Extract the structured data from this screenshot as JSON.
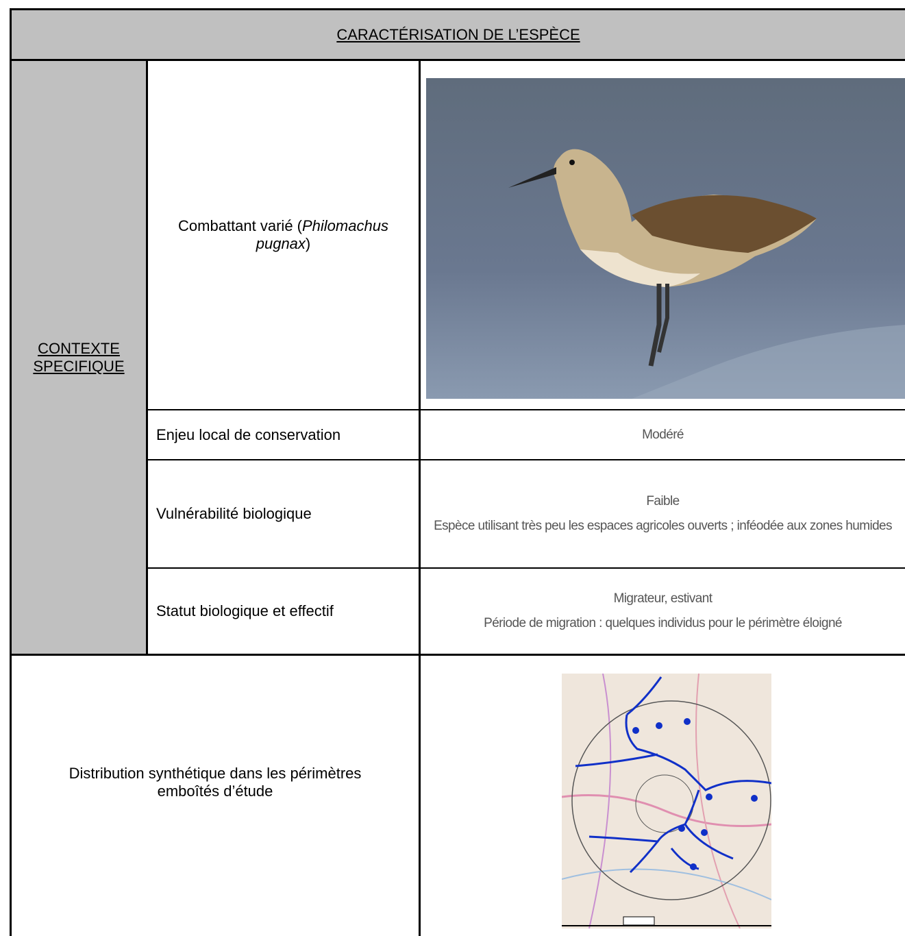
{
  "header": {
    "title": "CARACTÉRISATION DE L’ESPÈCE"
  },
  "section": {
    "label": "CONTEXTE SPECIFIQUE"
  },
  "species": {
    "name_prefix": "Combattant varié (",
    "latin": "Philomachus pugnax",
    "name_suffix": ")"
  },
  "rows": [
    {
      "label": "Enjeu local de conservation",
      "values": [
        "Modéré"
      ]
    },
    {
      "label": "Vulnérabilité biologique",
      "values": [
        "Faible",
        "Espèce utilisant très peu les espaces agricoles ouverts ; inféodée aux zones humides"
      ]
    },
    {
      "label": "Statut biologique et effectif",
      "values": [
        "Migrateur, estivant",
        "Période de migration : quelques individus pour le périmètre éloigné"
      ]
    }
  ],
  "distribution": {
    "label": "Distribution synthétique dans les périmètres emboîtés d’étude"
  }
}
